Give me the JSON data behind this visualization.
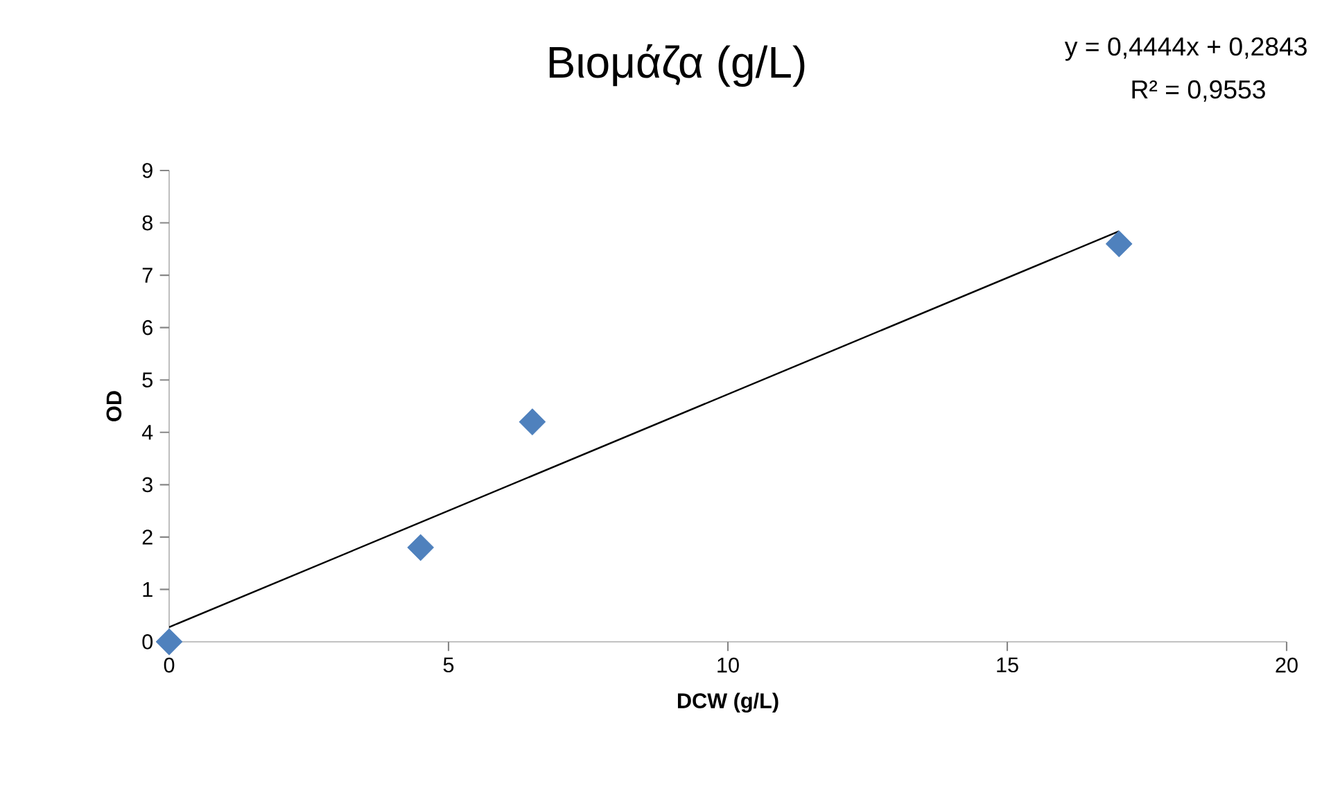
{
  "chart_data": {
    "type": "scatter",
    "title": "Βιομάζα (g/L)",
    "xlabel": "DCW (g/L)",
    "ylabel": "OD",
    "annotations": [
      "y = 0,4444x + 0,2843",
      "R² = 0,9553"
    ],
    "xlim": [
      0,
      20
    ],
    "xticks": [
      0,
      5,
      10,
      15,
      20
    ],
    "ylim": [
      0,
      9
    ],
    "yticks": [
      0,
      1,
      2,
      3,
      4,
      5,
      6,
      7,
      8,
      9
    ],
    "grid": false,
    "marker": "diamond",
    "series": [
      {
        "color": "#4f81bd",
        "x": [
          0,
          4.5,
          6.5,
          17
        ],
        "values": [
          0,
          1.8,
          4.2,
          7.6
        ]
      },
      {
        "type": "line",
        "color": "#000000",
        "marker": "none",
        "line_style": "solid",
        "x": [
          0,
          17
        ],
        "values": [
          0.28,
          7.84
        ]
      }
    ]
  }
}
